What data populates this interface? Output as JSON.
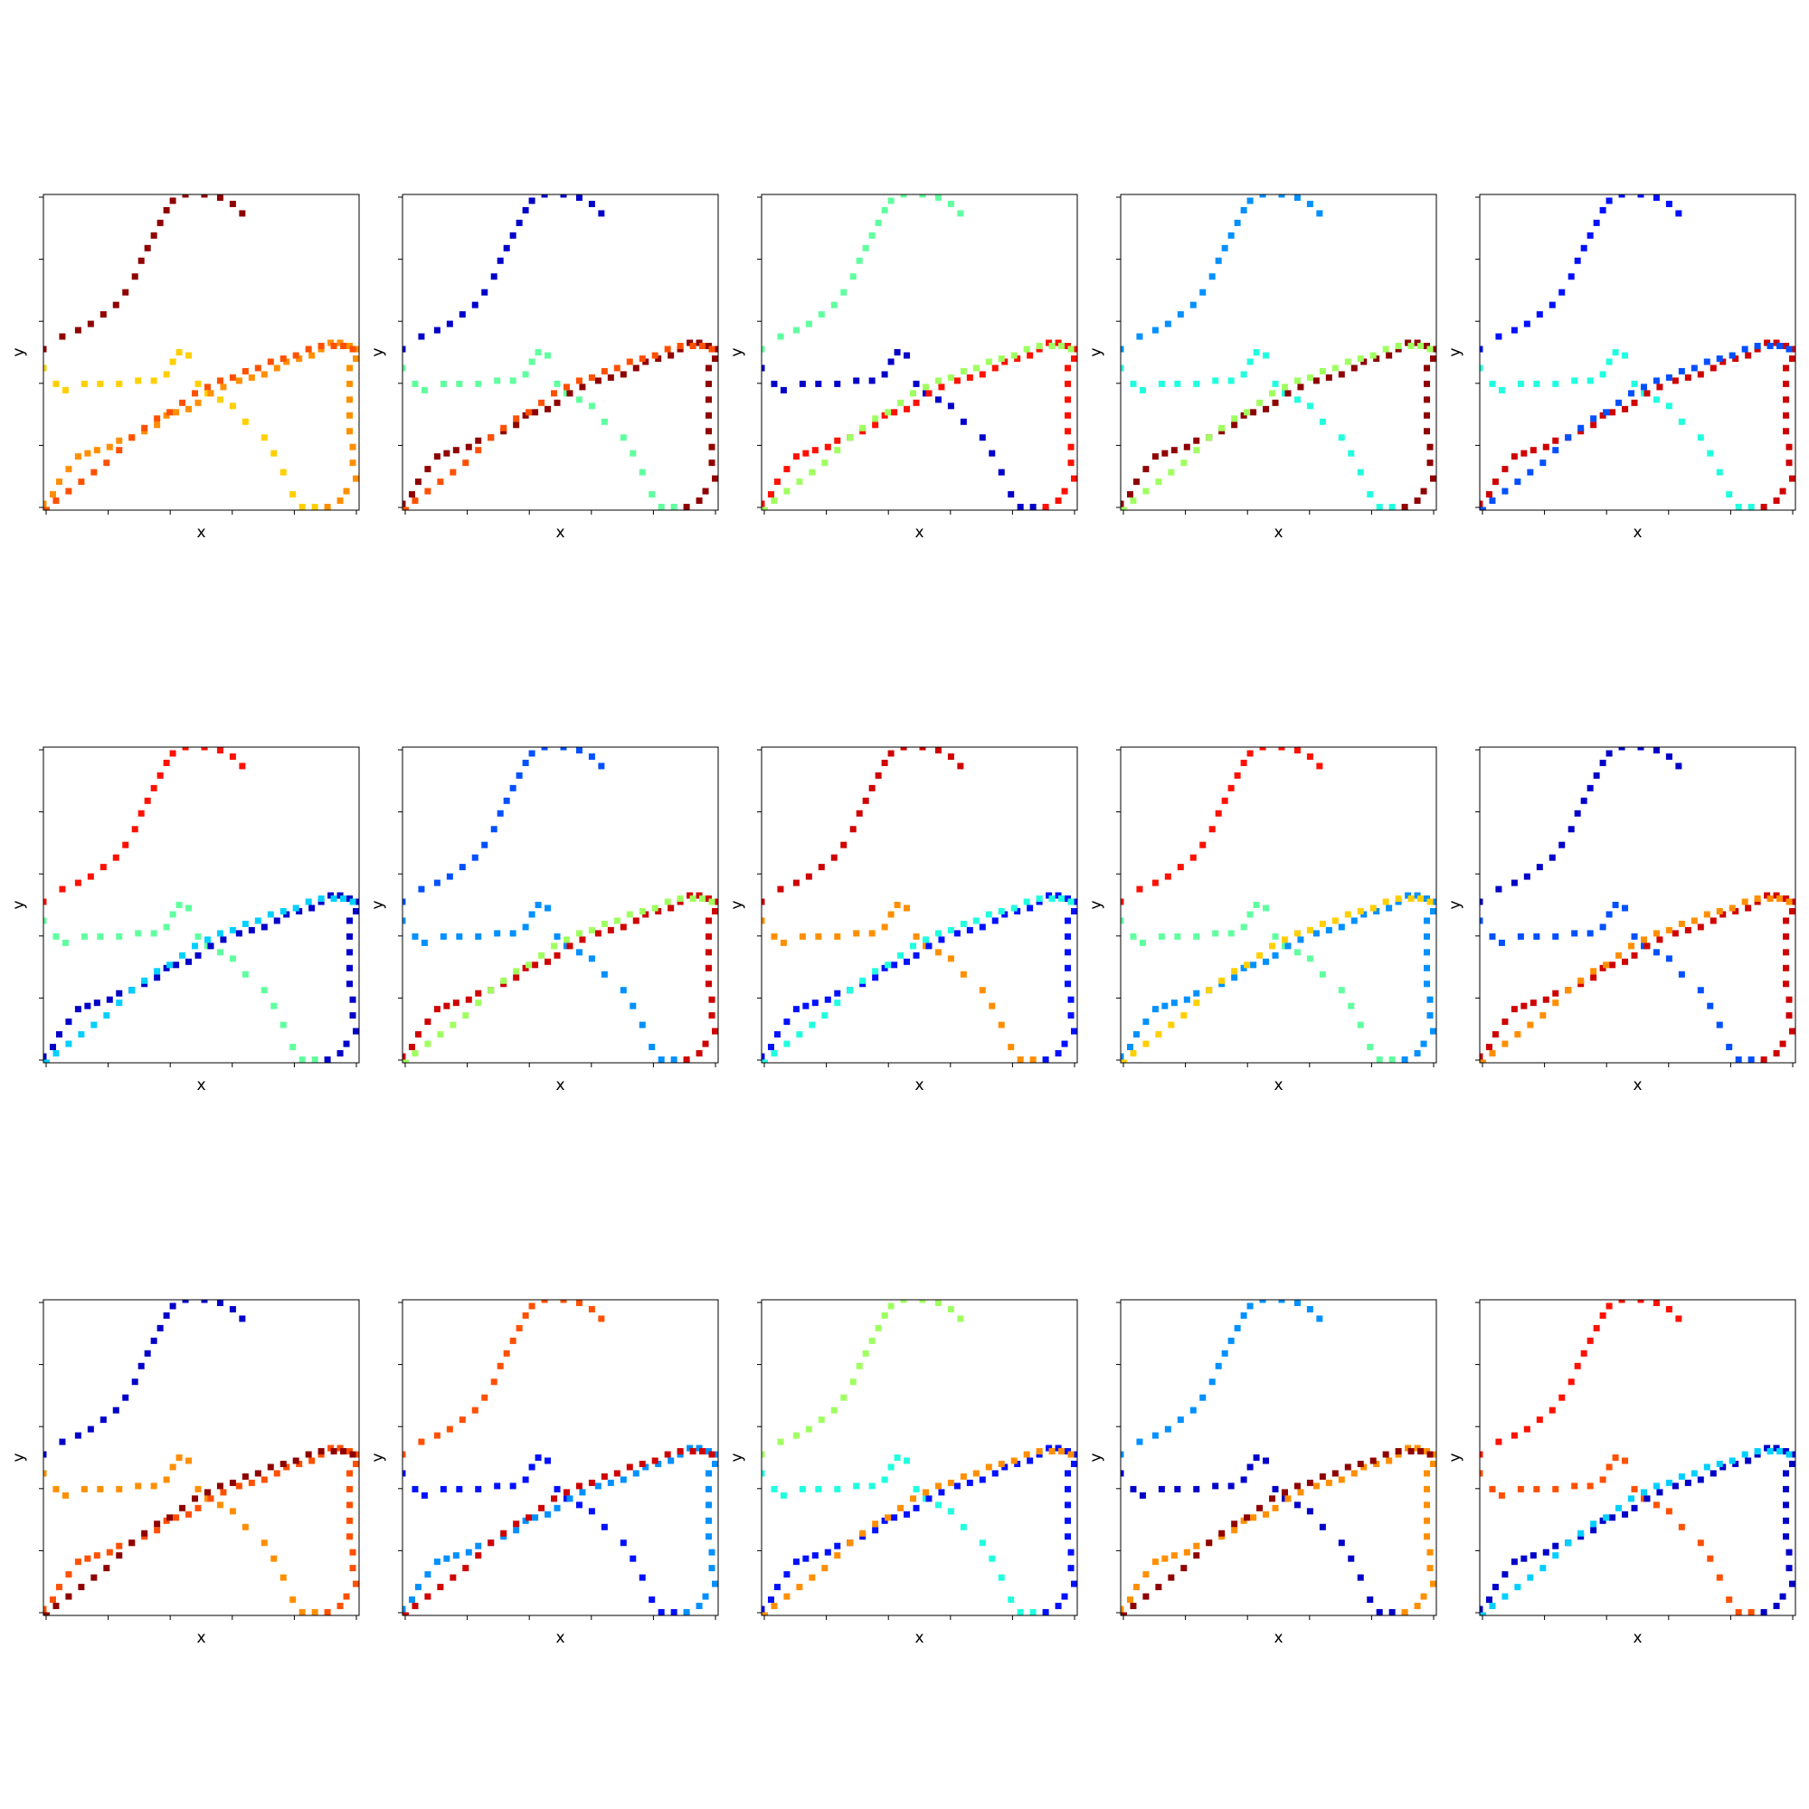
{
  "figure": {
    "rows": 3,
    "cols": 5,
    "xlabel": "x",
    "ylabel": "y",
    "xlim": [
      0,
      1
    ],
    "ylim": [
      0,
      1
    ]
  },
  "palette": [
    "#00008f",
    "#0000c8",
    "#0010ff",
    "#0050ff",
    "#0090ff",
    "#00d0ff",
    "#20ffdf",
    "#60ff9f",
    "#9fff60",
    "#dfff20",
    "#ffcf00",
    "#ff8f00",
    "#ff5000",
    "#ff1000",
    "#cf0000",
    "#8f0000"
  ],
  "chart_data": {
    "type": "scatter",
    "description_of_shared_points": "All 15 panels show the same point set; only the color index per branch changes.",
    "branches": {
      "A": [
        [
          0.0,
          0.51
        ],
        [
          0.06,
          0.55
        ],
        [
          0.11,
          0.57
        ],
        [
          0.15,
          0.59
        ],
        [
          0.19,
          0.62
        ],
        [
          0.23,
          0.65
        ],
        [
          0.26,
          0.69
        ],
        [
          0.29,
          0.74
        ],
        [
          0.31,
          0.79
        ],
        [
          0.33,
          0.83
        ],
        [
          0.35,
          0.87
        ],
        [
          0.37,
          0.91
        ],
        [
          0.39,
          0.95
        ],
        [
          0.41,
          0.98
        ],
        [
          0.45,
          1.0
        ],
        [
          0.51,
          1.0
        ],
        [
          0.56,
          0.99
        ],
        [
          0.6,
          0.97
        ],
        [
          0.63,
          0.94
        ]
      ],
      "B": [
        [
          0.0,
          0.45
        ],
        [
          0.04,
          0.4
        ],
        [
          0.07,
          0.38
        ],
        [
          0.13,
          0.4
        ],
        [
          0.18,
          0.4
        ],
        [
          0.24,
          0.4
        ],
        [
          0.3,
          0.41
        ],
        [
          0.35,
          0.41
        ],
        [
          0.39,
          0.43
        ],
        [
          0.41,
          0.47
        ],
        [
          0.43,
          0.5
        ],
        [
          0.46,
          0.49
        ],
        [
          0.49,
          0.4
        ],
        [
          0.52,
          0.37
        ],
        [
          0.56,
          0.35
        ],
        [
          0.6,
          0.33
        ],
        [
          0.64,
          0.28
        ],
        [
          0.7,
          0.23
        ],
        [
          0.73,
          0.18
        ],
        [
          0.76,
          0.12
        ],
        [
          0.79,
          0.05
        ],
        [
          0.82,
          0.01
        ],
        [
          0.86,
          0.01
        ],
        [
          0.9,
          0.0
        ]
      ],
      "C": [
        [
          0.0,
          0.02
        ],
        [
          0.03,
          0.05
        ],
        [
          0.05,
          0.09
        ],
        [
          0.08,
          0.13
        ],
        [
          0.11,
          0.17
        ],
        [
          0.14,
          0.18
        ],
        [
          0.17,
          0.19
        ],
        [
          0.21,
          0.2
        ],
        [
          0.24,
          0.22
        ],
        [
          0.28,
          0.23
        ],
        [
          0.32,
          0.25
        ],
        [
          0.36,
          0.27
        ],
        [
          0.39,
          0.3
        ],
        [
          0.42,
          0.31
        ],
        [
          0.46,
          0.32
        ],
        [
          0.49,
          0.34
        ],
        [
          0.53,
          0.37
        ],
        [
          0.57,
          0.39
        ],
        [
          0.62,
          0.41
        ],
        [
          0.66,
          0.42
        ],
        [
          0.7,
          0.43
        ],
        [
          0.74,
          0.45
        ],
        [
          0.77,
          0.47
        ],
        [
          0.81,
          0.48
        ],
        [
          0.85,
          0.49
        ],
        [
          0.88,
          0.51
        ],
        [
          0.91,
          0.53
        ],
        [
          0.94,
          0.53
        ],
        [
          0.97,
          0.52
        ],
        [
          1.0,
          0.51
        ],
        [
          0.99,
          0.48
        ],
        [
          0.97,
          0.45
        ],
        [
          0.97,
          0.4
        ],
        [
          0.97,
          0.35
        ],
        [
          0.97,
          0.3
        ],
        [
          0.97,
          0.25
        ],
        [
          0.98,
          0.2
        ],
        [
          0.98,
          0.15
        ],
        [
          0.99,
          0.1
        ],
        [
          0.96,
          0.06
        ],
        [
          0.94,
          0.03
        ],
        [
          0.9,
          0.01
        ]
      ],
      "D": [
        [
          0.01,
          0.0
        ],
        [
          0.04,
          0.03
        ],
        [
          0.08,
          0.06
        ],
        [
          0.12,
          0.09
        ],
        [
          0.16,
          0.12
        ],
        [
          0.2,
          0.15
        ],
        [
          0.24,
          0.19
        ],
        [
          0.28,
          0.23
        ],
        [
          0.32,
          0.26
        ],
        [
          0.36,
          0.29
        ],
        [
          0.4,
          0.31
        ],
        [
          0.44,
          0.34
        ],
        [
          0.48,
          0.37
        ],
        [
          0.52,
          0.39
        ],
        [
          0.56,
          0.41
        ],
        [
          0.6,
          0.42
        ],
        [
          0.64,
          0.44
        ],
        [
          0.68,
          0.45
        ],
        [
          0.72,
          0.47
        ],
        [
          0.76,
          0.48
        ],
        [
          0.8,
          0.49
        ],
        [
          0.84,
          0.51
        ],
        [
          0.88,
          0.52
        ],
        [
          0.92,
          0.52
        ],
        [
          0.95,
          0.52
        ],
        [
          0.98,
          0.51
        ]
      ]
    },
    "branch_colors_by_panel": [
      [
        15,
        10,
        11,
        12
      ],
      [
        1,
        7,
        15,
        12
      ],
      [
        7,
        1,
        13,
        8
      ],
      [
        4,
        6,
        15,
        8
      ],
      [
        2,
        6,
        14,
        3
      ],
      [
        13,
        7,
        1,
        5
      ],
      [
        3,
        4,
        14,
        8
      ],
      [
        14,
        11,
        2,
        6
      ],
      [
        13,
        7,
        4,
        10
      ],
      [
        1,
        3,
        14,
        11
      ],
      [
        1,
        11,
        12,
        15
      ],
      [
        12,
        2,
        4,
        14
      ],
      [
        8,
        6,
        2,
        11
      ],
      [
        4,
        1,
        11,
        15
      ],
      [
        13,
        12,
        1,
        5
      ]
    ]
  }
}
